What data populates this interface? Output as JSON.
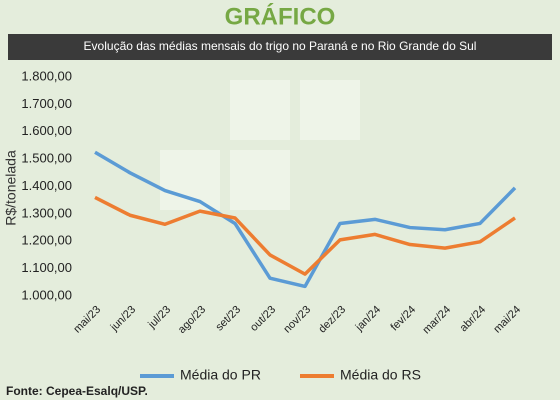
{
  "header": "GRÁFICO",
  "chart_data": {
    "type": "line",
    "title": "Evolução das médias mensais do trigo no Paraná e no Rio Grande do Sul",
    "ylabel": "R$/tonelada",
    "categories": [
      "mai/23",
      "jun/23",
      "jul/23",
      "ago/23",
      "set/23",
      "out/23",
      "nov/23",
      "dez/23",
      "jan/24",
      "fev/24",
      "mar/24",
      "abr/24",
      "mai/24"
    ],
    "series": [
      {
        "name": "Média do PR",
        "color": "#5b9bd5",
        "values": [
          1525,
          1450,
          1385,
          1345,
          1265,
          1065,
          1035,
          1265,
          1280,
          1250,
          1242,
          1265,
          1395
        ]
      },
      {
        "name": "Média do RS",
        "color": "#ed7d31",
        "values": [
          1360,
          1295,
          1262,
          1310,
          1285,
          1150,
          1080,
          1205,
          1225,
          1188,
          1175,
          1198,
          1285
        ]
      }
    ],
    "ylim": [
      1000,
      1800
    ],
    "yticks": [
      {
        "value": 1000,
        "label": "1.000,00"
      },
      {
        "value": 1100,
        "label": "1.100,00"
      },
      {
        "value": 1200,
        "label": "1.200,00"
      },
      {
        "value": 1300,
        "label": "1.300,00"
      },
      {
        "value": 1400,
        "label": "1.400,00"
      },
      {
        "value": 1500,
        "label": "1.500,00"
      },
      {
        "value": 1600,
        "label": "1.600,00"
      },
      {
        "value": 1700,
        "label": "1.700,00"
      },
      {
        "value": 1800,
        "label": "1.800,00"
      }
    ],
    "legend": "bottom",
    "source": "Fonte: Cepea-Esalq/USP."
  }
}
